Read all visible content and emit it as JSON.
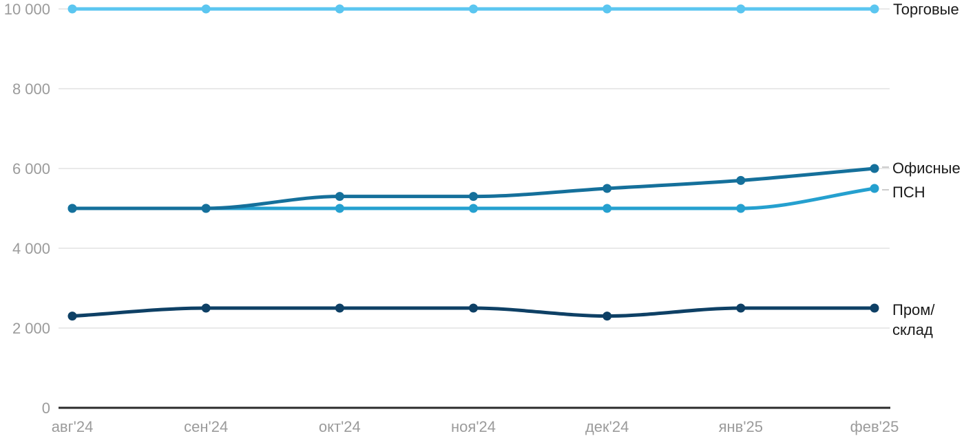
{
  "chart_data": {
    "type": "line",
    "title": "",
    "xlabel": "",
    "ylabel": "",
    "categories": [
      "авг'24",
      "сен'24",
      "окт'24",
      "ноя'24",
      "дек'24",
      "янв'25",
      "фев'25"
    ],
    "series": [
      {
        "name": "Торговые",
        "color": "#5bc6f0",
        "values": [
          10000,
          10000,
          10000,
          10000,
          10000,
          10000,
          10000
        ]
      },
      {
        "name": "Офисные",
        "color": "#15709b",
        "values": [
          5000,
          5000,
          5300,
          5300,
          5500,
          5700,
          6000
        ]
      },
      {
        "name": "ПСН",
        "color": "#25a0cf",
        "values": [
          5000,
          5000,
          5000,
          5000,
          5000,
          5000,
          5500
        ]
      },
      {
        "name": "Пром/склад",
        "color": "#0e4065",
        "label_lines": [
          "Пром/",
          "склад"
        ],
        "values": [
          2300,
          2500,
          2500,
          2500,
          2300,
          2500,
          2500
        ]
      }
    ],
    "ylim": [
      0,
      10000
    ],
    "y_ticks": [
      0,
      2000,
      4000,
      6000,
      8000,
      10000
    ],
    "y_tick_labels": [
      "0",
      "2 000",
      "4 000",
      "6 000",
      "8 000",
      "10 000"
    ],
    "grid": true,
    "legend_position": "right-edge-labels"
  },
  "colors": {
    "grid": "#e9e9e9",
    "axis": "#2b2b2b",
    "tick_text": "#9b9b9b",
    "label_text": "#1a1a1a",
    "leader": "#cccccc"
  }
}
